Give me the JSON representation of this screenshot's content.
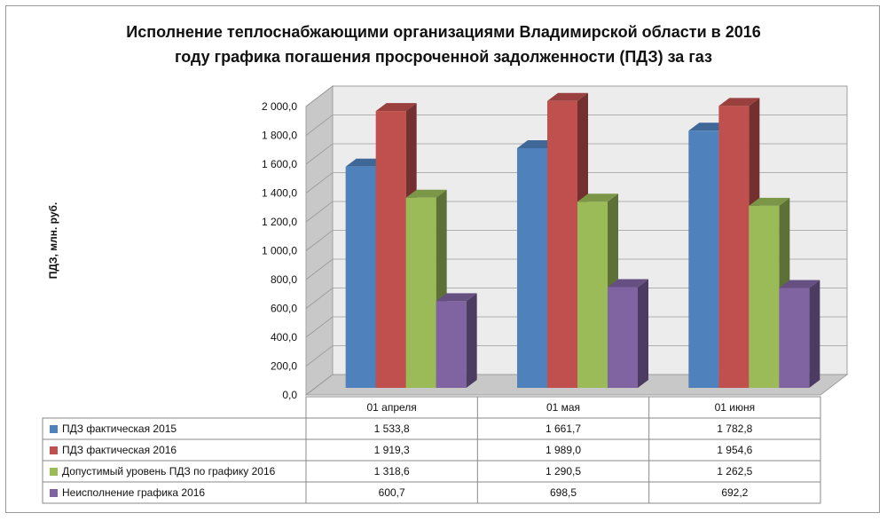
{
  "chart_data": {
    "type": "bar",
    "title": [
      "Исполнение теплоснабжающими организациями Владимирской области в 2016",
      "году графика погашения  просроченной задолженности (ПДЗ) за газ"
    ],
    "ylabel": "ПДЗ, млн. руб.",
    "ylim": [
      0,
      2000
    ],
    "yticks": [
      "0,0",
      "200,0",
      "400,0",
      "600,0",
      "800,0",
      "1 000,0",
      "1 200,0",
      "1 400,0",
      "1 600,0",
      "1 800,0",
      "2 000,0"
    ],
    "categories": [
      "01 апреля",
      "01 мая",
      "01 июня"
    ],
    "grid": true,
    "legend": "data-table",
    "series": [
      {
        "name": "ПДЗ фактическая 2015",
        "color": "#4f81bd",
        "values": [
          1533.8,
          1661.7,
          1782.8
        ],
        "labels": [
          "1 533,8",
          "1 661,7",
          "1 782,8"
        ]
      },
      {
        "name": "ПДЗ фактическая 2016",
        "color": "#c0504d",
        "values": [
          1919.3,
          1989.0,
          1954.6
        ],
        "labels": [
          "1 919,3",
          "1 989,0",
          "1 954,6"
        ]
      },
      {
        "name": "Допустимый уровень ПДЗ по графику 2016",
        "color": "#9bbb59",
        "values": [
          1318.6,
          1290.5,
          1262.5
        ],
        "labels": [
          "1 318,6",
          "1 290,5",
          "1 262,5"
        ]
      },
      {
        "name": "Неисполнение графика 2016",
        "color": "#8064a2",
        "values": [
          600.7,
          698.5,
          692.2
        ],
        "labels": [
          "600,7",
          "698,5",
          "692,2"
        ]
      }
    ]
  }
}
